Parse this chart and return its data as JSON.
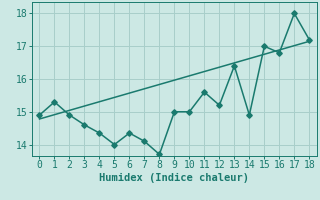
{
  "x": [
    0,
    1,
    2,
    3,
    4,
    5,
    6,
    7,
    8,
    9,
    10,
    11,
    12,
    13,
    14,
    15,
    16,
    17,
    18
  ],
  "y_data": [
    14.9,
    15.3,
    14.9,
    14.6,
    14.35,
    14.0,
    14.35,
    14.1,
    13.7,
    15.0,
    15.0,
    15.6,
    15.2,
    16.4,
    14.9,
    17.0,
    16.8,
    18.0,
    17.2
  ],
  "y_trend_start": 14.78,
  "y_trend_end": 17.15,
  "line_color": "#1a7a6e",
  "bg_color": "#cce8e4",
  "grid_color": "#a8ceca",
  "xlabel": "Humidex (Indice chaleur)",
  "ylim": [
    13.65,
    18.35
  ],
  "xlim": [
    -0.5,
    18.5
  ],
  "yticks": [
    14,
    15,
    16,
    17,
    18
  ],
  "xticks": [
    0,
    1,
    2,
    3,
    4,
    5,
    6,
    7,
    8,
    9,
    10,
    11,
    12,
    13,
    14,
    15,
    16,
    17,
    18
  ],
  "marker": "D",
  "markersize": 2.8,
  "linewidth": 1.1,
  "font_size": 7.5
}
